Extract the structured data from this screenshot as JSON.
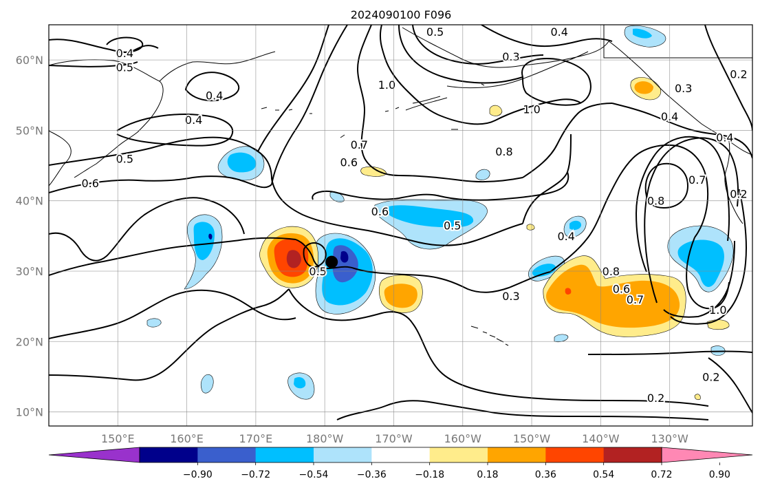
{
  "title": "2024090100 F096",
  "map": {
    "lon_range": [
      140,
      242
    ],
    "lat_range": [
      8,
      65
    ],
    "lon_ticks": [
      {
        "lon": 150,
        "label": "150°E"
      },
      {
        "lon": 160,
        "label": "160°E"
      },
      {
        "lon": 170,
        "label": "170°E"
      },
      {
        "lon": 180,
        "label": "180°W"
      },
      {
        "lon": 190,
        "label": "170°W"
      },
      {
        "lon": 200,
        "label": "160°W"
      },
      {
        "lon": 210,
        "label": "150°W"
      },
      {
        "lon": 220,
        "label": "140°W"
      },
      {
        "lon": 230,
        "label": "130°W"
      }
    ],
    "lat_ticks": [
      {
        "lat": 10,
        "label": "10°N"
      },
      {
        "lat": 20,
        "label": "20°N"
      },
      {
        "lat": 30,
        "label": "30°N"
      },
      {
        "lat": 40,
        "label": "40°N"
      },
      {
        "lat": 50,
        "label": "50°N"
      },
      {
        "lat": 60,
        "label": "60°N"
      }
    ],
    "grid": true,
    "storm_marker": {
      "lon": 181,
      "lat": 31.3
    }
  },
  "colorbar": {
    "tick_labels": [
      "−0.90",
      "−0.72",
      "−0.54",
      "−0.36",
      "−0.18",
      "0.18",
      "0.36",
      "0.54",
      "0.72",
      "0.90"
    ],
    "colors": [
      "#9932cc",
      "#00008b",
      "#3a5fcd",
      "#00bfff",
      "#aee3fb",
      "#ffffff",
      "#ffec8b",
      "#ffa500",
      "#ff4500",
      "#b22222",
      "#ff88b4"
    ]
  },
  "contour_labels": [
    {
      "lon": 151,
      "lat": 61,
      "text": "0.4"
    },
    {
      "lon": 151,
      "lat": 59,
      "text": "0.5"
    },
    {
      "lon": 164,
      "lat": 55,
      "text": "0.4"
    },
    {
      "lon": 161,
      "lat": 51.5,
      "text": "0.4"
    },
    {
      "lon": 151,
      "lat": 46,
      "text": "0.5"
    },
    {
      "lon": 146,
      "lat": 42.5,
      "text": "0.6"
    },
    {
      "lon": 185,
      "lat": 48,
      "text": "0.7"
    },
    {
      "lon": 183.5,
      "lat": 45.5,
      "text": "0.6"
    },
    {
      "lon": 188,
      "lat": 38.5,
      "text": "0.6"
    },
    {
      "lon": 198.5,
      "lat": 36.5,
      "text": "0.5"
    },
    {
      "lon": 215,
      "lat": 35,
      "text": "0.4"
    },
    {
      "lon": 207,
      "lat": 26.5,
      "text": "0.3"
    },
    {
      "lon": 189,
      "lat": 56.5,
      "text": "1.0"
    },
    {
      "lon": 210,
      "lat": 53,
      "text": "1.0"
    },
    {
      "lon": 206,
      "lat": 47,
      "text": "0.8"
    },
    {
      "lon": 196,
      "lat": 64,
      "text": "0.5"
    },
    {
      "lon": 207,
      "lat": 60.5,
      "text": "0.3"
    },
    {
      "lon": 214,
      "lat": 64,
      "text": "0.4"
    },
    {
      "lon": 232,
      "lat": 56,
      "text": "0.3"
    },
    {
      "lon": 230,
      "lat": 52,
      "text": "0.4"
    },
    {
      "lon": 238,
      "lat": 49,
      "text": "0.4"
    },
    {
      "lon": 240,
      "lat": 58,
      "text": "0.2"
    },
    {
      "lon": 234,
      "lat": 43,
      "text": "0.7"
    },
    {
      "lon": 228,
      "lat": 40,
      "text": "0.8"
    },
    {
      "lon": 240,
      "lat": 41,
      "text": "0.2"
    },
    {
      "lon": 221.5,
      "lat": 30,
      "text": "0.8"
    },
    {
      "lon": 223,
      "lat": 27.5,
      "text": "0.6"
    },
    {
      "lon": 225,
      "lat": 26,
      "text": "0.7"
    },
    {
      "lon": 237,
      "lat": 24.5,
      "text": "1.0"
    },
    {
      "lon": 236,
      "lat": 15,
      "text": "0.2"
    },
    {
      "lon": 228,
      "lat": 12,
      "text": "0.2"
    },
    {
      "lon": 179,
      "lat": 30,
      "text": "0.5"
    }
  ]
}
